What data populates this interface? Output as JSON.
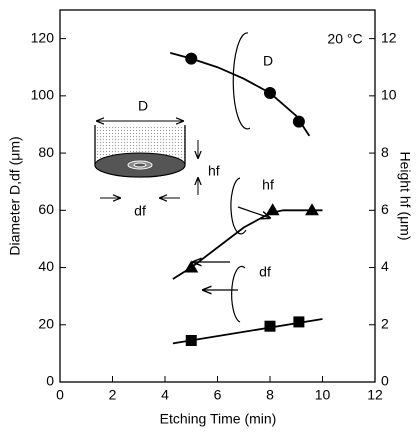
{
  "chart_data": {
    "type": "scatter",
    "xlabel": "Etching Time  (min)",
    "ylabel": "Diameter  D,df (μm)",
    "y2label": "Height  hf (μm)",
    "annotation": "20 °C",
    "inset_labels": {
      "top": "D",
      "height": "hf",
      "bottom": "df"
    },
    "xlim": [
      0,
      12
    ],
    "xticks": [
      0,
      2,
      4,
      6,
      8,
      10,
      12
    ],
    "ylim": [
      0,
      130
    ],
    "yticks": [
      0,
      20,
      40,
      60,
      80,
      100,
      120
    ],
    "y2lim": [
      0,
      13
    ],
    "y2ticks": [
      0,
      2,
      4,
      6,
      8,
      10,
      12
    ],
    "series": [
      {
        "name": "D",
        "marker": "circle",
        "color": "#000",
        "x": [
          5,
          8,
          9.1
        ],
        "values": [
          113,
          101,
          91
        ],
        "trend": {
          "x": [
            4.2,
            5,
            6,
            7,
            8,
            9,
            9.5
          ],
          "values": [
            115,
            113,
            110,
            106,
            101,
            93,
            86
          ]
        }
      },
      {
        "name": "hf",
        "marker": "triangle",
        "color": "#000",
        "axis": "y2",
        "x": [
          5,
          8.1,
          9.6
        ],
        "values": [
          4.0,
          6.0,
          6.0
        ],
        "trend": {
          "x": [
            4.3,
            5,
            6,
            7,
            8,
            8.5,
            9,
            10
          ],
          "values": [
            3.6,
            4.0,
            4.7,
            5.4,
            5.9,
            6.0,
            6.0,
            6.0
          ]
        }
      },
      {
        "name": "df",
        "marker": "square",
        "color": "#000",
        "x": [
          5,
          8,
          9.1
        ],
        "values": [
          14.5,
          19.5,
          21
        ],
        "trend": {
          "x": [
            4.3,
            10
          ],
          "values": [
            13.5,
            22
          ]
        }
      }
    ]
  }
}
